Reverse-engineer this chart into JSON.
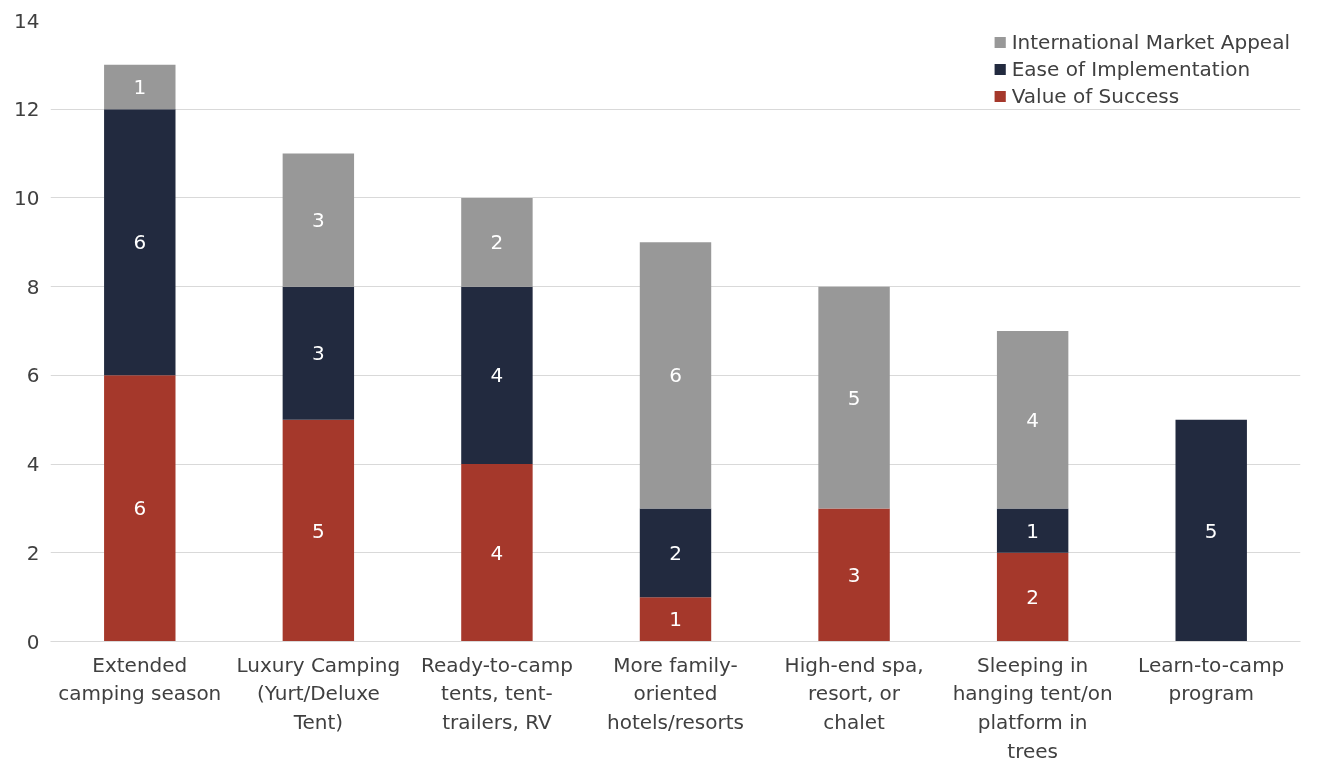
{
  "chart_data": {
    "type": "bar",
    "stacked": true,
    "data_labels": true,
    "legend": "top right",
    "grid": "y",
    "categories": [
      "Extended camping season",
      "Luxury Camping (Yurt/Deluxe Tent)",
      "Ready-to-camp tents, tent-trailers, RV",
      "More family-oriented hotels/resorts",
      "High-end spa, resort, or chalet",
      "Sleeping in hanging tent/on platform in trees",
      "Learn-to-camp program"
    ],
    "ylim": [
      0,
      14
    ],
    "yticks": [
      0,
      2,
      4,
      6,
      8,
      10,
      12,
      14
    ],
    "series": [
      {
        "name": "Value of Success",
        "color": "#a5382b",
        "values": [
          6,
          5,
          4,
          1,
          3,
          2,
          null
        ]
      },
      {
        "name": "Ease of Implementation",
        "color": "#222a3f",
        "values": [
          6,
          3,
          4,
          2,
          null,
          1,
          5
        ]
      },
      {
        "name": "International Market Appeal",
        "color": "#989898",
        "values": [
          1,
          3,
          2,
          6,
          5,
          4,
          null
        ]
      }
    ]
  }
}
